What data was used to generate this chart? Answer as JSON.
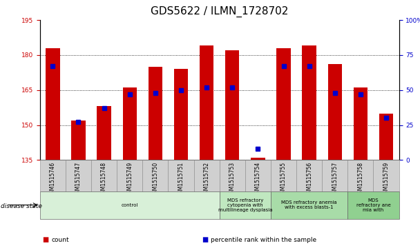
{
  "title": "GDS5622 / ILMN_1728702",
  "samples": [
    "GSM1515746",
    "GSM1515747",
    "GSM1515748",
    "GSM1515749",
    "GSM1515750",
    "GSM1515751",
    "GSM1515752",
    "GSM1515753",
    "GSM1515754",
    "GSM1515755",
    "GSM1515756",
    "GSM1515757",
    "GSM1515758",
    "GSM1515759"
  ],
  "bar_values": [
    183,
    152,
    158,
    166,
    175,
    174,
    184,
    182,
    136,
    183,
    184,
    176,
    166,
    155
  ],
  "percentile_values": [
    67,
    27,
    37,
    47,
    48,
    50,
    52,
    52,
    8,
    67,
    67,
    48,
    47,
    30
  ],
  "ylim_left": [
    135,
    195
  ],
  "ylim_right": [
    0,
    100
  ],
  "yticks_left": [
    135,
    150,
    165,
    180,
    195
  ],
  "yticks_right": [
    0,
    25,
    50,
    75,
    100
  ],
  "ytick_right_labels": [
    "0",
    "25",
    "50",
    "75",
    "100%"
  ],
  "bar_color": "#CC0000",
  "marker_color": "#0000CC",
  "xlabel_color": "#CC0000",
  "ylabel_right_color": "#0000CC",
  "disease_groups": [
    {
      "label": "control",
      "start": 0,
      "end": 7,
      "color": "#d8f0d8"
    },
    {
      "label": "MDS refractory\ncytopenia with\nmultilineage dysplasia",
      "start": 7,
      "end": 9,
      "color": "#c0e8c0"
    },
    {
      "label": "MDS refractory anemia\nwith excess blasts-1",
      "start": 9,
      "end": 12,
      "color": "#a8dca8"
    },
    {
      "label": "MDS\nrefractory ane\nmia with",
      "start": 12,
      "end": 14,
      "color": "#90d090"
    }
  ],
  "disease_state_label": "disease state",
  "legend_items": [
    {
      "label": "count",
      "color": "#CC0000"
    },
    {
      "label": "percentile rank within the sample",
      "color": "#0000CC"
    }
  ],
  "title_fontsize": 11,
  "tick_fontsize": 6.5,
  "bar_width": 0.55,
  "marker_size": 4
}
